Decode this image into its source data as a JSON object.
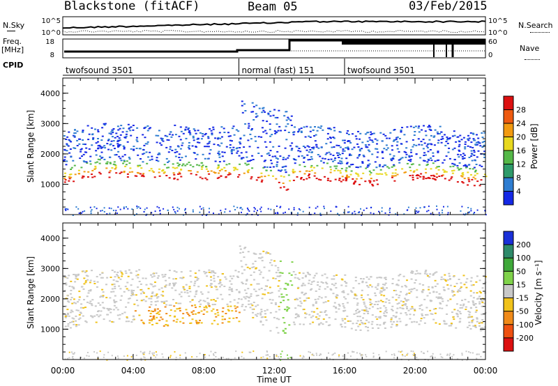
{
  "header": {
    "station": "Blackstone (fitACF)",
    "beam": "Beam 05",
    "date": "03/Feb/2015"
  },
  "sky_panel": {
    "left_label": "N.Sky",
    "right_label": "N.Search",
    "left_ticks": [
      "10^5",
      "10^0"
    ],
    "right_ticks": [
      "10^5",
      "10^0"
    ]
  },
  "freq_panel": {
    "left_label": "Freq.",
    "left_unit": "[MHz]",
    "right_label": "Nave",
    "left_ticks": [
      "18",
      "8"
    ],
    "right_ticks": [
      "60",
      "0"
    ]
  },
  "cpid": {
    "label": "CPID",
    "segments": [
      {
        "name": "twofsound 3501",
        "start_hour": 0,
        "end_hour": 10
      },
      {
        "name": "normal (fast) 151",
        "start_hour": 10,
        "end_hour": 16
      },
      {
        "name": "twofsound 3501",
        "start_hour": 16,
        "end_hour": 24
      }
    ]
  },
  "chart_data": [
    {
      "type": "heatmap",
      "title": "",
      "xlabel": "Time UT",
      "ylabel": "Slant Range [km]",
      "x_ticks": [
        "00:00",
        "04:00",
        "08:00",
        "12:00",
        "16:00",
        "20:00",
        "00:00"
      ],
      "xlim_hours": [
        0,
        24
      ],
      "y_ticks": [
        1000,
        2000,
        3000,
        4000
      ],
      "ylim": [
        0,
        4500
      ],
      "colorbar": {
        "label": "Power [dB]",
        "ticks": [
          "4",
          "8",
          "12",
          "16",
          "20",
          "24",
          "28"
        ],
        "colors": [
          "#1428e6",
          "#2e7dd1",
          "#2e9a6a",
          "#55b848",
          "#e8d81e",
          "#f29a10",
          "#ee5a10",
          "#dc1010"
        ]
      }
    },
    {
      "type": "heatmap",
      "title": "",
      "xlabel": "Time UT",
      "ylabel": "Slant Range [km]",
      "x_ticks": [
        "00:00",
        "04:00",
        "08:00",
        "12:00",
        "16:00",
        "20:00",
        "00:00"
      ],
      "xlim_hours": [
        0,
        24
      ],
      "y_ticks": [
        1000,
        2000,
        3000,
        4000
      ],
      "ylim": [
        0,
        4500
      ],
      "colorbar": {
        "label": "Velocity [m s⁻¹]",
        "ticks": [
          "200",
          "100",
          "50",
          "15",
          "-15",
          "-50",
          "-100",
          "-200"
        ],
        "colors": [
          "#1a30d8",
          "#2e8a6a",
          "#3fa83a",
          "#7fd24a",
          "#c8c8c8",
          "#f0c21a",
          "#f08a18",
          "#ee5010",
          "#dc1010"
        ]
      }
    }
  ],
  "axis": {
    "time_label": "Time UT"
  }
}
